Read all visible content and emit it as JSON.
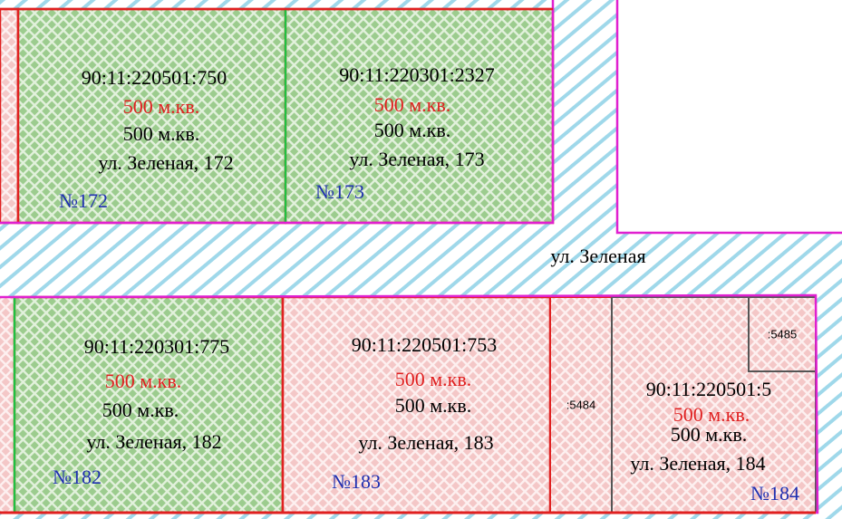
{
  "street_label": "ул. Зеленая",
  "parcels": [
    {
      "cadastral": "90:11:220501:750",
      "area_plan": "500 м.кв.",
      "area": "500 м.кв.",
      "address": "ул. Зеленая, 172",
      "number": "№172"
    },
    {
      "cadastral": "90:11:220301:2327",
      "area_plan": "500 м.кв.",
      "area": "500 м.кв.",
      "address": "ул. Зеленая, 173",
      "number": "№173"
    },
    {
      "cadastral": "90:11:220301:775",
      "area_plan": "500 м.кв.",
      "area": "500 м.кв.",
      "address": "ул. Зеленая, 182",
      "number": "№182"
    },
    {
      "cadastral": "90:11:220501:753",
      "area_plan": "500 м.кв.",
      "area": "500 м.кв.",
      "address": "ул. Зеленая, 183",
      "number": "№183"
    },
    {
      "cadastral": "90:11:220501:5",
      "area_plan": "500 м.кв.",
      "area": "500 м.кв.",
      "address": "ул. Зеленая, 184",
      "number": "№184"
    }
  ],
  "small_labels": [
    ":5484",
    ":5485"
  ]
}
